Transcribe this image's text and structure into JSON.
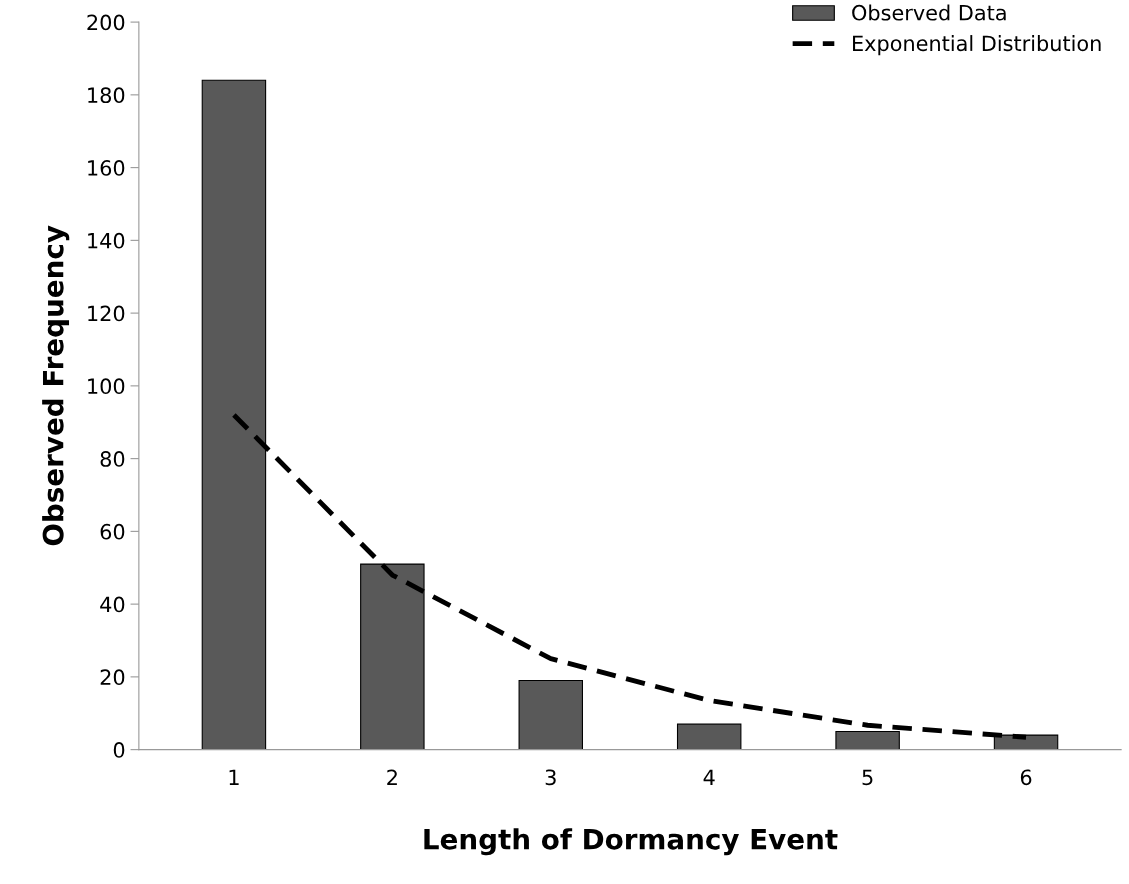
{
  "chart_data": {
    "type": "bar",
    "xlabel": "Length of Dormancy Event",
    "ylabel": "Observed Frequency",
    "categories": [
      "1",
      "2",
      "3",
      "4",
      "5",
      "6"
    ],
    "series": [
      {
        "name": "Observed Data",
        "color": "#595959",
        "values": [
          184,
          51,
          19,
          7,
          5,
          4
        ]
      },
      {
        "name": "Exponential Distribution",
        "type": "line",
        "color": "#000000",
        "line_style": "dashed",
        "values": [
          92,
          48,
          25,
          13.5,
          6.7,
          3.4
        ]
      }
    ],
    "ylim": [
      0,
      200
    ],
    "yticks": [
      0,
      20,
      40,
      60,
      80,
      100,
      120,
      140,
      160,
      180,
      200
    ],
    "grid": false,
    "legend": "top right"
  }
}
